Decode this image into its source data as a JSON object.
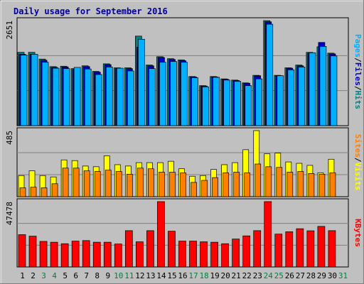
{
  "colors": {
    "background": "#c0c0c0",
    "panel": "#c0c0c0",
    "title": "#0000a0",
    "hits": "#008080",
    "files": "#0000c0",
    "pages": "#00b0ff",
    "visits": "#ffff00",
    "sites": "#ff8000",
    "kbytes": "#ff0000",
    "weekend_day": "#008040",
    "weekday": "#000000"
  },
  "chart_data": {
    "type": "bar",
    "title": "Daily usage for September 2016",
    "categories": [
      "1",
      "2",
      "3",
      "4",
      "5",
      "6",
      "7",
      "8",
      "9",
      "10",
      "11",
      "12",
      "13",
      "14",
      "15",
      "16",
      "17",
      "18",
      "19",
      "20",
      "21",
      "22",
      "23",
      "24",
      "25",
      "26",
      "27",
      "28",
      "29",
      "30",
      "31"
    ],
    "weekend_days": [
      "3",
      "4",
      "10",
      "11",
      "17",
      "18",
      "24",
      "25",
      "31"
    ],
    "panels": [
      {
        "id": "hits-files-pages",
        "ylabel_parts": [
          "Pages",
          "/",
          "Files",
          "/",
          "Hits"
        ],
        "ymax_label": "2651",
        "ymax": 2651,
        "series": [
          {
            "name": "Hits",
            "values": [
              1850,
              1850,
              1680,
              1490,
              1500,
              1440,
              1510,
              1370,
              1560,
              1460,
              1460,
              2260,
              1530,
              1740,
              1690,
              1660,
              1240,
              1010,
              1240,
              1180,
              1150,
              1080,
              1270,
              2650,
              1270,
              1460,
              1530,
              1850,
              1990,
              1830,
              0
            ]
          },
          {
            "name": "Files",
            "values": [
              1800,
              1800,
              1650,
              1470,
              1480,
              1420,
              1490,
              1350,
              1540,
              1440,
              1440,
              1980,
              1510,
              1720,
              1670,
              1640,
              1230,
              1000,
              1230,
              1170,
              1140,
              1070,
              1260,
              2620,
              1260,
              1450,
              1510,
              1830,
              2100,
              1810,
              0
            ]
          },
          {
            "name": "Pages",
            "values": [
              1780,
              1800,
              1600,
              1450,
              1440,
              1470,
              1430,
              1290,
              1480,
              1450,
              1380,
              2180,
              1440,
              1600,
              1620,
              1600,
              1210,
              980,
              1220,
              1150,
              1120,
              1010,
              1180,
              2560,
              1260,
              1410,
              1480,
              1840,
              2000,
              1760,
              0
            ]
          }
        ]
      },
      {
        "id": "visits-sites",
        "ylabel_parts": [
          "Sites",
          "/",
          "Visits"
        ],
        "ymax_label": "485",
        "ymax": 485,
        "series": [
          {
            "name": "Visits",
            "values": [
              155,
              190,
              155,
              145,
              270,
              265,
              225,
              220,
              300,
              235,
              225,
              250,
              250,
              250,
              260,
              205,
              150,
              155,
              200,
              235,
              250,
              345,
              485,
              315,
              320,
              255,
              245,
              230,
              175,
              275,
              0
            ]
          },
          {
            "name": "Sites",
            "values": [
              65,
              70,
              65,
              95,
              210,
              210,
              190,
              185,
              195,
              185,
              165,
              210,
              205,
              180,
              180,
              175,
              105,
              120,
              140,
              175,
              180,
              175,
              240,
              220,
              215,
              180,
              185,
              170,
              165,
              175,
              0
            ]
          }
        ]
      },
      {
        "id": "kbytes",
        "ylabel_parts": [
          "KBytes"
        ],
        "ymax_label": "47478",
        "ymax": 47478,
        "series": [
          {
            "name": "KBytes",
            "values": [
              23500,
              22400,
              18600,
              18000,
              16900,
              18800,
              19200,
              18000,
              18000,
              16700,
              26400,
              18300,
              26400,
              47500,
              26000,
              18800,
              18800,
              18300,
              18000,
              16900,
              20300,
              22600,
              26400,
              47500,
              23900,
              25600,
              27800,
              26300,
              29500,
              26400,
              0
            ]
          }
        ]
      }
    ]
  }
}
